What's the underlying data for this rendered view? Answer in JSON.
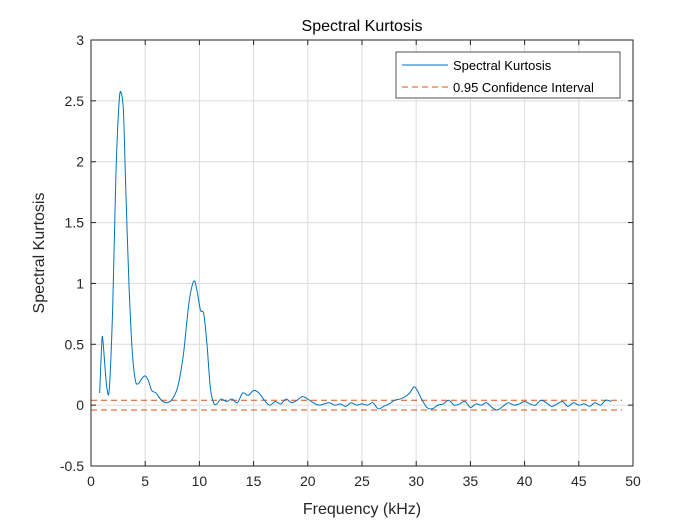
{
  "chart_data": {
    "type": "line",
    "title": "Spectral Kurtosis",
    "xlabel": "Frequency (kHz)",
    "ylabel": "Spectral Kurtosis",
    "xlim": [
      0,
      50
    ],
    "ylim": [
      -0.5,
      3
    ],
    "xticks": [
      0,
      5,
      10,
      15,
      20,
      25,
      30,
      35,
      40,
      45,
      50
    ],
    "yticks": [
      -0.5,
      0,
      0.5,
      1,
      1.5,
      2,
      2.5,
      3
    ],
    "grid": true,
    "legend_placement": "top-right",
    "colors": {
      "series": "#0072BD",
      "confidence": "#D95319"
    },
    "series": [
      {
        "name": "Spectral Kurtosis",
        "x": [
          0.8,
          1.0,
          1.1,
          1.3,
          1.5,
          1.7,
          2.0,
          2.3,
          2.6,
          2.8,
          3.0,
          3.2,
          3.5,
          3.8,
          4.1,
          4.4,
          4.7,
          5.0,
          5.3,
          5.6,
          6.0,
          6.5,
          7.0,
          7.5,
          8.0,
          8.5,
          8.8,
          9.1,
          9.5,
          9.8,
          10.1,
          10.4,
          10.7,
          11.0,
          11.3,
          11.6,
          12.0,
          12.5,
          13.0,
          13.5,
          14.0,
          14.5,
          15.0,
          15.5,
          16.0,
          16.5,
          17.0,
          17.5,
          18.0,
          18.5,
          19.0,
          19.5,
          20.0,
          20.5,
          21.0,
          21.5,
          22.0,
          22.5,
          23.0,
          23.5,
          24.0,
          24.5,
          25.0,
          25.5,
          26.0,
          26.5,
          27.0,
          27.5,
          28.0,
          28.5,
          29.0,
          29.4,
          29.8,
          30.1,
          30.5,
          31.0,
          31.5,
          32.0,
          32.5,
          33.0,
          33.5,
          34.0,
          34.5,
          35.0,
          35.5,
          36.0,
          36.5,
          37.0,
          37.5,
          38.0,
          38.5,
          39.0,
          39.5,
          40.0,
          40.5,
          41.0,
          41.5,
          42.0,
          42.5,
          43.0,
          43.5,
          44.0,
          44.5,
          45.0,
          45.5,
          46.0,
          46.5,
          47.0,
          47.5,
          48.0
        ],
        "y": [
          0.1,
          0.52,
          0.53,
          0.3,
          0.12,
          0.15,
          0.8,
          1.9,
          2.5,
          2.56,
          2.4,
          1.8,
          1.0,
          0.45,
          0.2,
          0.18,
          0.22,
          0.24,
          0.2,
          0.12,
          0.1,
          0.04,
          0.02,
          0.05,
          0.15,
          0.4,
          0.65,
          0.88,
          1.02,
          0.93,
          0.78,
          0.75,
          0.5,
          0.15,
          0.02,
          0.01,
          0.05,
          0.03,
          0.05,
          0.02,
          0.1,
          0.08,
          0.12,
          0.1,
          0.04,
          0.0,
          0.03,
          0.01,
          0.05,
          0.02,
          0.04,
          0.07,
          0.05,
          0.02,
          0.0,
          0.01,
          0.02,
          0.0,
          0.01,
          -0.01,
          0.02,
          0.0,
          0.01,
          0.0,
          0.02,
          -0.03,
          -0.01,
          0.01,
          0.04,
          0.05,
          0.07,
          0.1,
          0.15,
          0.12,
          0.05,
          -0.02,
          -0.03,
          0.0,
          0.01,
          0.04,
          0.0,
          0.01,
          0.03,
          -0.02,
          0.01,
          0.0,
          0.02,
          -0.02,
          -0.04,
          -0.01,
          0.02,
          0.0,
          0.01,
          0.03,
          0.01,
          0.0,
          0.04,
          0.02,
          -0.01,
          0.01,
          0.03,
          -0.01,
          0.02,
          0.0,
          0.01,
          -0.01,
          0.02,
          0.0,
          0.04,
          0.03
        ]
      },
      {
        "name": "0.95 Confidence Interval",
        "style": "dashed",
        "x": [
          0,
          49
        ],
        "upper": 0.04,
        "lower": -0.04
      }
    ]
  }
}
